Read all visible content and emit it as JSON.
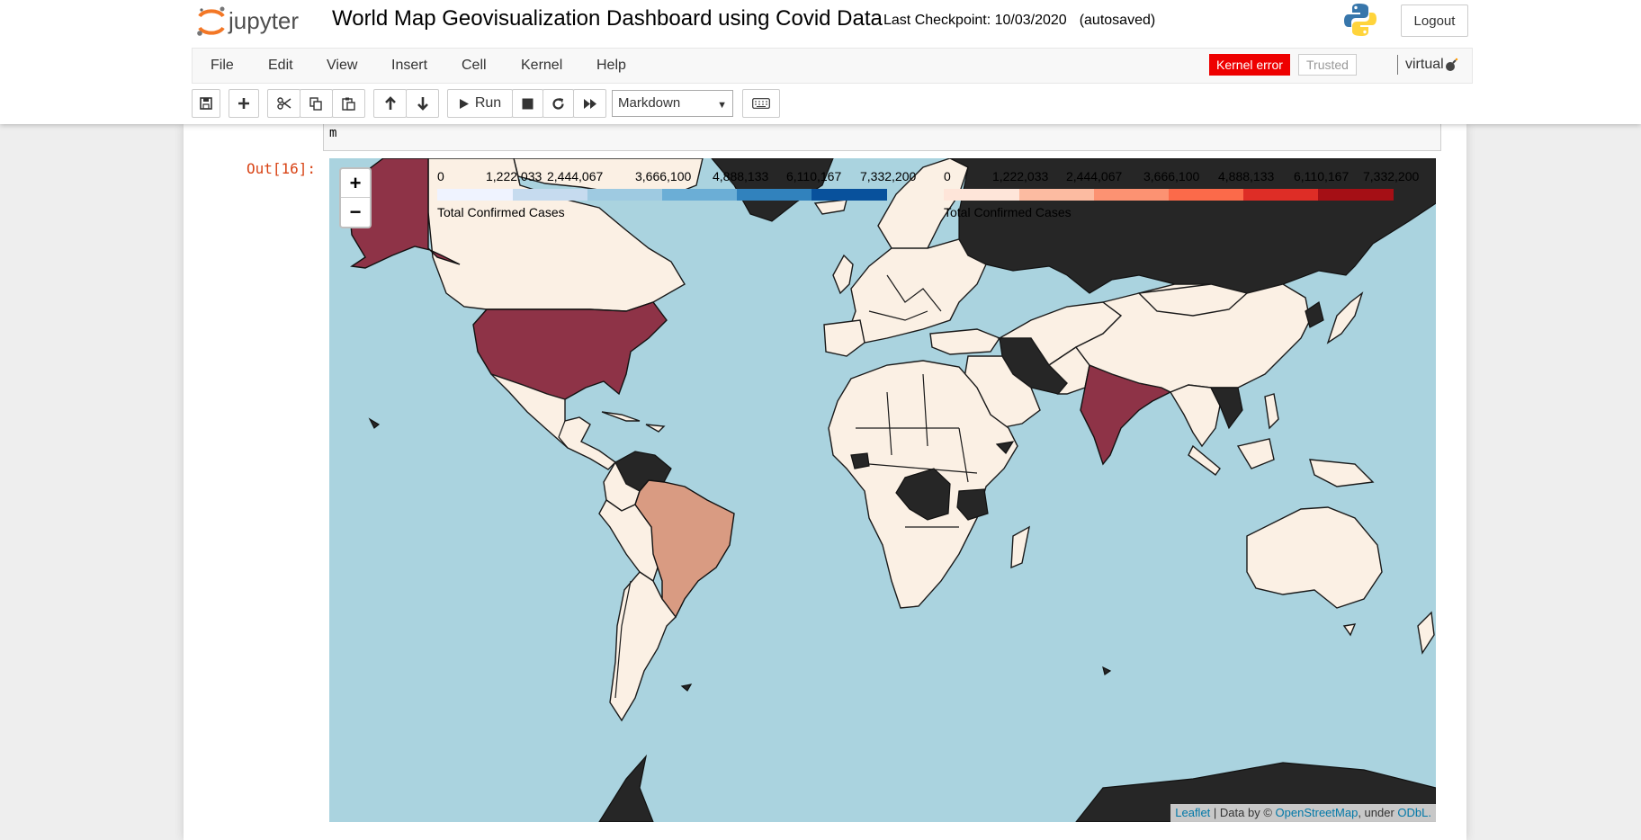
{
  "header": {
    "logo_text": "jupyter",
    "notebook_name": "World Map Geovisualization Dashboard using Covid Data",
    "checkpoint_label": "Last Checkpoint: 10/03/2020",
    "autosave_status": "(autosaved)",
    "logout_label": "Logout"
  },
  "menubar": {
    "items": [
      "File",
      "Edit",
      "View",
      "Insert",
      "Cell",
      "Kernel",
      "Help"
    ],
    "kernel_error_label": "Kernel error",
    "trusted_label": "Trusted",
    "kernel_name": "virtual"
  },
  "toolbar": {
    "run_label": "Run",
    "cell_type": "Markdown"
  },
  "cell": {
    "code_tail": "m",
    "output_prompt": "Out[16]:"
  },
  "map": {
    "zoom_in": "+",
    "zoom_out": "−",
    "legends": [
      {
        "ticks": [
          "0",
          "1,222,033",
          "2,444,067",
          "3,666,100",
          "4,888,133",
          "6,110,167",
          "7,332,200"
        ],
        "caption": "Total Confirmed Cases",
        "colors": [
          "#eff3ff",
          "#c6dbef",
          "#9ecae1",
          "#6baed6",
          "#3182bd",
          "#08519c"
        ]
      },
      {
        "ticks": [
          "0",
          "1,222,033",
          "2,444,067",
          "3,666,100",
          "4,888,133",
          "6,110,167",
          "7,332,200"
        ],
        "caption": "Total Confirmed Cases",
        "colors": [
          "#fee5d9",
          "#fcbba1",
          "#fc9272",
          "#fb6a4a",
          "#de2d26",
          "#a50f15"
        ]
      }
    ],
    "attribution": {
      "leaflet": "Leaflet",
      "data_by": "| Data by ©",
      "osm": "OpenStreetMap",
      "under": ", under",
      "odbl": "ODbL."
    }
  }
}
